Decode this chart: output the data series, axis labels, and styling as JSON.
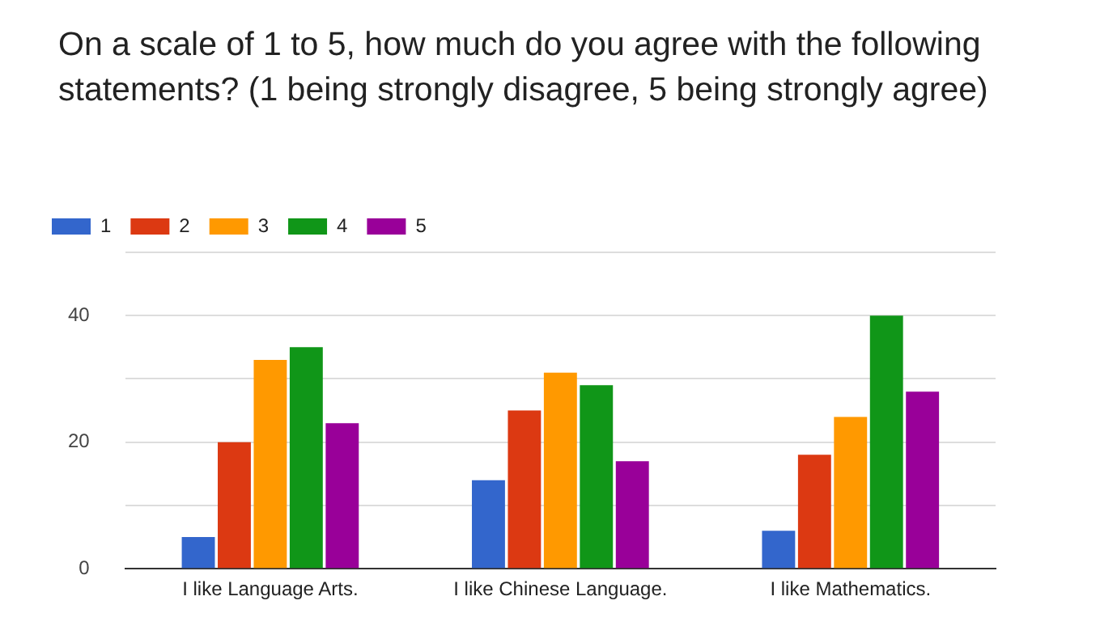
{
  "chart_data": {
    "type": "bar",
    "title": "On a scale of 1 to 5, how much do you agree with the following statements? (1 being strongly disagree, 5 being strongly agree)",
    "categories": [
      "I like Language Arts.",
      "I like Chinese Language.",
      "I like Mathematics."
    ],
    "series": [
      {
        "name": "1",
        "color": "#3366cc",
        "values": [
          5,
          14,
          6
        ]
      },
      {
        "name": "2",
        "color": "#dc3912",
        "values": [
          20,
          25,
          18
        ]
      },
      {
        "name": "3",
        "color": "#ff9900",
        "values": [
          33,
          31,
          24
        ]
      },
      {
        "name": "4",
        "color": "#109618",
        "values": [
          35,
          29,
          40
        ]
      },
      {
        "name": "5",
        "color": "#990099",
        "values": [
          23,
          17,
          28
        ]
      }
    ],
    "ylim": [
      0,
      50
    ],
    "yticks": [
      0,
      {
        "value": 10,
        "label": null
      },
      20,
      {
        "value": 30,
        "label": null
      },
      40,
      {
        "value": 50,
        "label": null
      }
    ],
    "grid": "y",
    "legend": "top left"
  }
}
